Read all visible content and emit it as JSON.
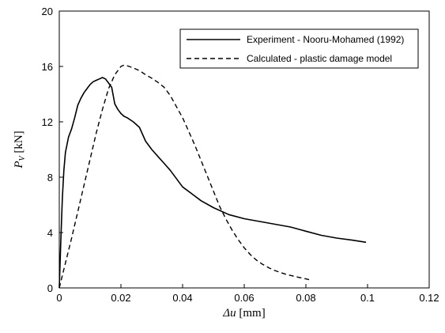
{
  "chart_data": {
    "type": "line",
    "title": "",
    "xlabel_symbol": "Δu",
    "xlabel_unit": " [mm]",
    "ylabel_symbol": "P",
    "ylabel_sub": "V",
    "ylabel_unit": " [kN]",
    "xlim": [
      0,
      0.12
    ],
    "ylim": [
      0,
      20
    ],
    "xticks": [
      0,
      0.02,
      0.04,
      0.06,
      0.08,
      0.1,
      0.12
    ],
    "xtick_labels": [
      "0",
      "0.02",
      "0.04",
      "0.06",
      "0.08",
      "0.1",
      "0.12"
    ],
    "yticks": [
      0,
      4,
      8,
      12,
      16,
      20
    ],
    "ytick_labels": [
      "0",
      "4",
      "8",
      "12",
      "16",
      "20"
    ],
    "grid": false,
    "legend_position": "top-right",
    "series": [
      {
        "name": "Experiment - Nooru-Mohamed (1992)",
        "style": "solid",
        "color": "#000000",
        "x": [
          0,
          0.0005,
          0.001,
          0.0015,
          0.002,
          0.003,
          0.004,
          0.005,
          0.006,
          0.007,
          0.008,
          0.009,
          0.01,
          0.011,
          0.012,
          0.013,
          0.014,
          0.015,
          0.016,
          0.017,
          0.018,
          0.019,
          0.02,
          0.021,
          0.022,
          0.024,
          0.026,
          0.028,
          0.03,
          0.032,
          0.034,
          0.036,
          0.038,
          0.04,
          0.043,
          0.046,
          0.05,
          0.055,
          0.06,
          0.065,
          0.07,
          0.075,
          0.08,
          0.085,
          0.09,
          0.095,
          0.0995
        ],
        "y": [
          0,
          3.5,
          6.5,
          8.5,
          9.8,
          10.9,
          11.5,
          12.3,
          13.2,
          13.7,
          14.1,
          14.4,
          14.7,
          14.9,
          15.0,
          15.1,
          15.2,
          15.1,
          14.8,
          14.5,
          13.3,
          12.9,
          12.6,
          12.4,
          12.3,
          12.0,
          11.6,
          10.6,
          10.0,
          9.5,
          9.0,
          8.5,
          7.9,
          7.3,
          6.8,
          6.3,
          5.8,
          5.3,
          5.0,
          4.8,
          4.6,
          4.4,
          4.1,
          3.8,
          3.6,
          3.45,
          3.3
        ]
      },
      {
        "name": "Calculated - plastic damage model",
        "style": "dashed",
        "color": "#000000",
        "x": [
          0,
          0.002,
          0.004,
          0.006,
          0.008,
          0.01,
          0.012,
          0.014,
          0.016,
          0.018,
          0.02,
          0.021,
          0.022,
          0.024,
          0.026,
          0.028,
          0.03,
          0.032,
          0.034,
          0.036,
          0.038,
          0.04,
          0.042,
          0.044,
          0.046,
          0.048,
          0.05,
          0.052,
          0.054,
          0.056,
          0.058,
          0.06,
          0.062,
          0.064,
          0.066,
          0.068,
          0.07,
          0.072,
          0.074,
          0.076,
          0.078,
          0.08,
          0.082
        ],
        "y": [
          0,
          1.8,
          3.6,
          5.5,
          7.4,
          9.3,
          11.2,
          12.9,
          14.4,
          15.4,
          16.0,
          16.1,
          16.05,
          15.9,
          15.7,
          15.4,
          15.15,
          14.85,
          14.5,
          13.9,
          13.1,
          12.3,
          11.3,
          10.3,
          9.2,
          8.1,
          7.0,
          5.9,
          5.0,
          4.2,
          3.5,
          2.9,
          2.4,
          2.0,
          1.7,
          1.45,
          1.25,
          1.1,
          0.95,
          0.85,
          0.75,
          0.65,
          0.55
        ]
      }
    ]
  }
}
